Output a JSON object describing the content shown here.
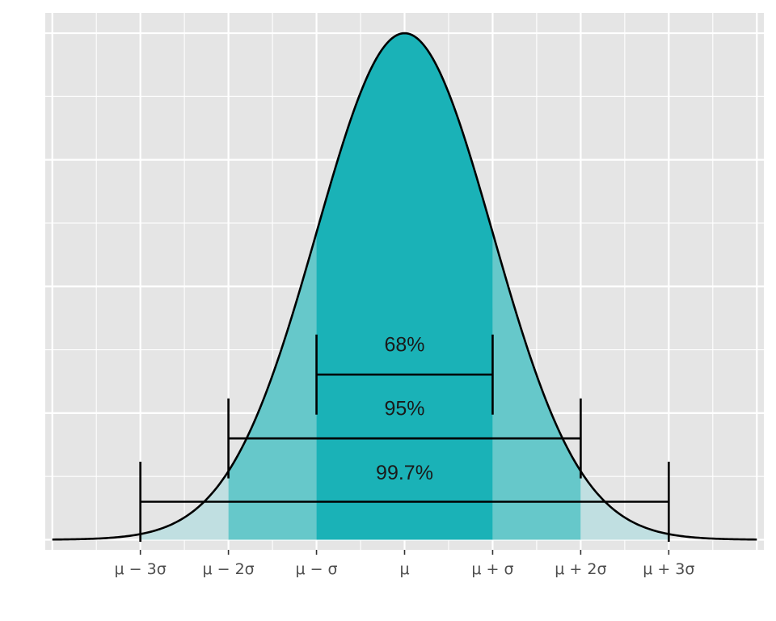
{
  "chart_data": {
    "type": "area",
    "title": "",
    "xlabel": "",
    "ylabel": "",
    "distribution": "normal",
    "xlim": [
      -4.08,
      4.08
    ],
    "ylim": [
      -0.02,
      1.04
    ],
    "x_ticks": [
      {
        "value": -3,
        "label": "μ − 3σ"
      },
      {
        "value": -2,
        "label": "μ − 2σ"
      },
      {
        "value": -1,
        "label": "μ − σ"
      },
      {
        "value": 0,
        "label": "μ"
      },
      {
        "value": 1,
        "label": "μ + σ"
      },
      {
        "value": 2,
        "label": "μ + 2σ"
      },
      {
        "value": 3,
        "label": "μ + 3σ"
      }
    ],
    "curve": {
      "mean": 0,
      "sd": 1,
      "peak": 1,
      "x_range": [
        -4,
        4
      ],
      "color": "#000000"
    },
    "bands": [
      {
        "from": -3,
        "to": -2,
        "color": "#c0dfe1"
      },
      {
        "from": -2,
        "to": -1,
        "color": "#66c8ca"
      },
      {
        "from": -1,
        "to": 1,
        "color": "#1ab2b7"
      },
      {
        "from": 1,
        "to": 2,
        "color": "#66c8ca"
      },
      {
        "from": 2,
        "to": 3,
        "color": "#c0dfe1"
      }
    ],
    "intervals": [
      {
        "label": "68%",
        "from": -1,
        "to": 1,
        "y": 0.326,
        "label_y": 0.372,
        "cap_half": 0.079
      },
      {
        "label": "95%",
        "from": -2,
        "to": 2,
        "y": 0.2,
        "label_y": 0.246,
        "cap_half": 0.079
      },
      {
        "label": "99.7%",
        "from": -3,
        "to": 3,
        "y": 0.075,
        "label_y": 0.119,
        "cap_half": 0.079
      }
    ],
    "grid": true,
    "panel_background": "#e5e5e5",
    "grid_color": "#ffffff",
    "legend": "none"
  }
}
